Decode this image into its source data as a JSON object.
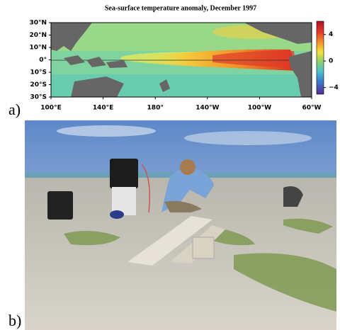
{
  "panel_a": {
    "label": "a)",
    "title": "Sea-surface temperature anomaly, December 1997",
    "lat_labels": [
      "30°N",
      "20°N",
      "10°N",
      "0°",
      "10°S",
      "20°S",
      "30°S"
    ],
    "lon_labels": [
      "100°E",
      "140°E",
      "180°",
      "140°W",
      "100°W",
      "60°W"
    ],
    "colorbar": {
      "lim": [
        -5,
        6
      ],
      "ticks": [
        4,
        0,
        {
          "value": -4,
          "label": "−4"
        }
      ]
    }
  },
  "panel_b": {
    "label": "b)"
  }
}
